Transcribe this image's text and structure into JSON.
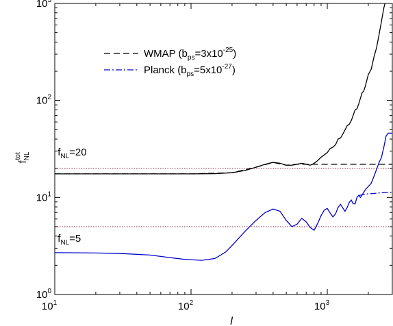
{
  "chart_data": {
    "type": "line",
    "xlabel": "l",
    "ylabel": {
      "base": "f",
      "sub": "NL",
      "sup": "tot"
    },
    "xscale": "log",
    "yscale": "log",
    "xlim": [
      10,
      3000
    ],
    "ylim": [
      1,
      1000
    ],
    "grid": false,
    "legend_position": "top-left",
    "x_ticks": [
      {
        "value": 10,
        "base": "10",
        "exp": "1"
      },
      {
        "value": 100,
        "base": "10",
        "exp": "2"
      },
      {
        "value": 1000,
        "base": "10",
        "exp": "3"
      }
    ],
    "y_ticks": [
      {
        "value": 1,
        "base": "10",
        "exp": "0"
      },
      {
        "value": 10,
        "base": "10",
        "exp": "1"
      },
      {
        "value": 100,
        "base": "10",
        "exp": "2"
      },
      {
        "value": 1000,
        "base": "10",
        "exp": "3"
      }
    ],
    "reference_lines": [
      {
        "value": 20,
        "label_main": "f",
        "label_sub": "NL",
        "label_tail": "=20",
        "label_x": 10.5,
        "label_y": 27,
        "color": "#8b1a4a"
      },
      {
        "value": 5,
        "label_main": "f",
        "label_sub": "NL",
        "label_tail": "=5",
        "label_x": 10.5,
        "label_y": 3.5,
        "color": "#8b1a4a"
      }
    ],
    "legend": [
      {
        "pre": "WMAP (b",
        "sub": "ps",
        "mid": "=3x10",
        "sup": "-25",
        "post": ")",
        "color": "#000000",
        "dash": "9,5"
      },
      {
        "pre": "Planck (b",
        "sub": "ps",
        "mid": "=5x10",
        "sup": "-27",
        "post": ")",
        "color": "#0000cc",
        "dash": "9,3,2,3"
      }
    ],
    "series": [
      {
        "color": "#000000",
        "style": "solid",
        "points": [
          [
            10,
            17.5
          ],
          [
            30,
            17.5
          ],
          [
            100,
            17.5
          ],
          [
            150,
            17.6
          ],
          [
            200,
            18.0
          ],
          [
            250,
            19.0
          ],
          [
            300,
            20.5
          ],
          [
            350,
            22.0
          ],
          [
            400,
            23.0
          ],
          [
            450,
            22.5
          ],
          [
            500,
            21.5
          ],
          [
            550,
            21.5
          ],
          [
            600,
            22.0
          ],
          [
            650,
            22.5
          ],
          [
            700,
            22.0
          ],
          [
            750,
            21.5
          ],
          [
            800,
            22.5
          ],
          [
            850,
            24.0
          ],
          [
            900,
            26.0
          ],
          [
            1000,
            29.0
          ],
          [
            1050,
            32.0
          ],
          [
            1100,
            33.0
          ],
          [
            1150,
            35.0
          ],
          [
            1200,
            40.0
          ],
          [
            1250,
            41.0
          ],
          [
            1300,
            45.0
          ],
          [
            1400,
            55.0
          ],
          [
            1450,
            57.0
          ],
          [
            1500,
            62.0
          ],
          [
            1600,
            80.0
          ],
          [
            1650,
            82.0
          ],
          [
            1700,
            92.0
          ],
          [
            1800,
            120.0
          ],
          [
            1850,
            125.0
          ],
          [
            1900,
            140.0
          ],
          [
            2000,
            185.0
          ],
          [
            2100,
            210.0
          ],
          [
            2200,
            280.0
          ],
          [
            2300,
            350.0
          ],
          [
            2400,
            480.0
          ],
          [
            2500,
            660.0
          ],
          [
            2600,
            900.0
          ],
          [
            2650,
            1000.0
          ]
        ]
      },
      {
        "color": "#000000",
        "style": "dashed",
        "points": [
          [
            10,
            17.5
          ],
          [
            100,
            17.5
          ],
          [
            200,
            18.0
          ],
          [
            300,
            20.5
          ],
          [
            400,
            23.0
          ],
          [
            500,
            21.5
          ],
          [
            600,
            22.0
          ],
          [
            700,
            22.0
          ],
          [
            800,
            22.0
          ],
          [
            1000,
            22.0
          ],
          [
            1500,
            22.0
          ],
          [
            2000,
            22.0
          ],
          [
            3000,
            22.0
          ]
        ]
      },
      {
        "color": "#0000cc",
        "style": "solid",
        "points": [
          [
            10,
            2.7
          ],
          [
            20,
            2.68
          ],
          [
            30,
            2.65
          ],
          [
            50,
            2.55
          ],
          [
            70,
            2.4
          ],
          [
            90,
            2.3
          ],
          [
            120,
            2.25
          ],
          [
            150,
            2.35
          ],
          [
            180,
            2.75
          ],
          [
            200,
            3.2
          ],
          [
            250,
            4.5
          ],
          [
            300,
            5.8
          ],
          [
            350,
            7.0
          ],
          [
            400,
            7.6
          ],
          [
            450,
            7.2
          ],
          [
            500,
            5.8
          ],
          [
            550,
            5.0
          ],
          [
            600,
            5.3
          ],
          [
            650,
            6.1
          ],
          [
            700,
            5.6
          ],
          [
            750,
            4.9
          ],
          [
            800,
            4.6
          ],
          [
            850,
            5.4
          ],
          [
            900,
            6.5
          ],
          [
            950,
            7.4
          ],
          [
            1000,
            7.7
          ],
          [
            1050,
            6.9
          ],
          [
            1100,
            6.3
          ],
          [
            1150,
            6.8
          ],
          [
            1200,
            7.9
          ],
          [
            1250,
            8.5
          ],
          [
            1300,
            7.8
          ],
          [
            1350,
            7.2
          ],
          [
            1400,
            7.9
          ],
          [
            1450,
            8.9
          ],
          [
            1500,
            9.4
          ],
          [
            1550,
            8.6
          ],
          [
            1600,
            8.6
          ],
          [
            1650,
            10.0
          ],
          [
            1700,
            10.5
          ],
          [
            1750,
            10.0
          ],
          [
            1800,
            10.6
          ],
          [
            1900,
            12.0
          ],
          [
            2000,
            13.0
          ],
          [
            2100,
            14.0
          ],
          [
            2200,
            16.5
          ],
          [
            2300,
            19.5
          ],
          [
            2400,
            23.0
          ],
          [
            2500,
            26.0
          ],
          [
            2600,
            33.0
          ],
          [
            2700,
            43.0
          ],
          [
            2800,
            46.0
          ],
          [
            3000,
            46.0
          ]
        ]
      },
      {
        "color": "#0000cc",
        "style": "dashdot",
        "points": [
          [
            1700,
            10.5
          ],
          [
            1900,
            10.8
          ],
          [
            2000,
            10.9
          ],
          [
            2200,
            11.0
          ],
          [
            2500,
            11.2
          ],
          [
            3000,
            11.3
          ]
        ]
      }
    ]
  }
}
